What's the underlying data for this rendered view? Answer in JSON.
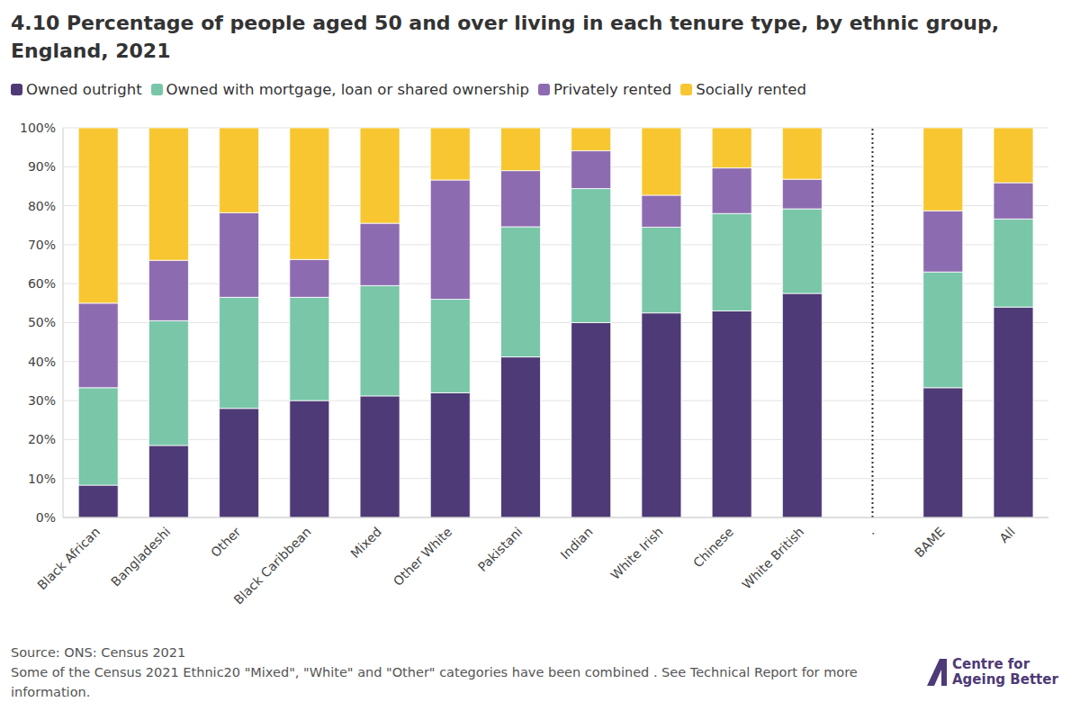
{
  "chart_data": {
    "type": "bar",
    "stacked": true,
    "grid": true,
    "legend": "top",
    "title": "4.10 Percentage of people aged 50 and over living in each tenure type, by ethnic group, England, 2021",
    "source": "Source: ONS: Census 2021",
    "note": "Some of the Census 2021 Ethnic20 \"Mixed\", \"White\" and \"Other\" categories have been combined . See Technical Report for more information.",
    "logo": "Centre for Ageing Better",
    "categories": [
      "Black African",
      "Bangladeshi",
      "Other",
      "Black Caribbean",
      "Mixed",
      "Other White",
      "Pakistani",
      "Indian",
      "White Irish",
      "Chinese",
      "White British",
      ".",
      "BAME",
      "All"
    ],
    "series": [
      {
        "name": "Owned outright",
        "color": "#4e3a76",
        "values": [
          8.3,
          18.5,
          28,
          30,
          31.2,
          32,
          41.2,
          50,
          52.5,
          53,
          57.5,
          null,
          33.3,
          54
        ]
      },
      {
        "name": "Owned with mortgage, loan or shared ownership",
        "color": "#79c6a9",
        "values": [
          25,
          32,
          28.5,
          26.5,
          28.3,
          24,
          33.4,
          34.4,
          22,
          25,
          21.7,
          null,
          29.7,
          22.6
        ]
      },
      {
        "name": "Privately rented",
        "color": "#8d6bb0",
        "values": [
          21.7,
          15.5,
          21.7,
          9.7,
          16,
          30.6,
          14.4,
          9.7,
          8.2,
          11.7,
          7.6,
          null,
          15.7,
          9.3
        ]
      },
      {
        "name": "Socially rented",
        "color": "#f8c630",
        "values": [
          45,
          34,
          21.8,
          33.8,
          24.5,
          13.4,
          11,
          5.9,
          17.3,
          10.3,
          13.2,
          null,
          21.3,
          14.1
        ]
      }
    ],
    "ylim": [
      0,
      100
    ],
    "yticks": [
      {
        "value": 0,
        "label": "0%"
      },
      {
        "value": 10,
        "label": "10%"
      },
      {
        "value": 20,
        "label": "20%"
      },
      {
        "value": 30,
        "label": "30%"
      },
      {
        "value": 40,
        "label": "40%"
      },
      {
        "value": 50,
        "label": "50%"
      },
      {
        "value": 60,
        "label": "60%"
      },
      {
        "value": 70,
        "label": "70%"
      },
      {
        "value": 80,
        "label": "80%"
      },
      {
        "value": 90,
        "label": "90%"
      },
      {
        "value": 100,
        "label": "100%"
      }
    ]
  }
}
